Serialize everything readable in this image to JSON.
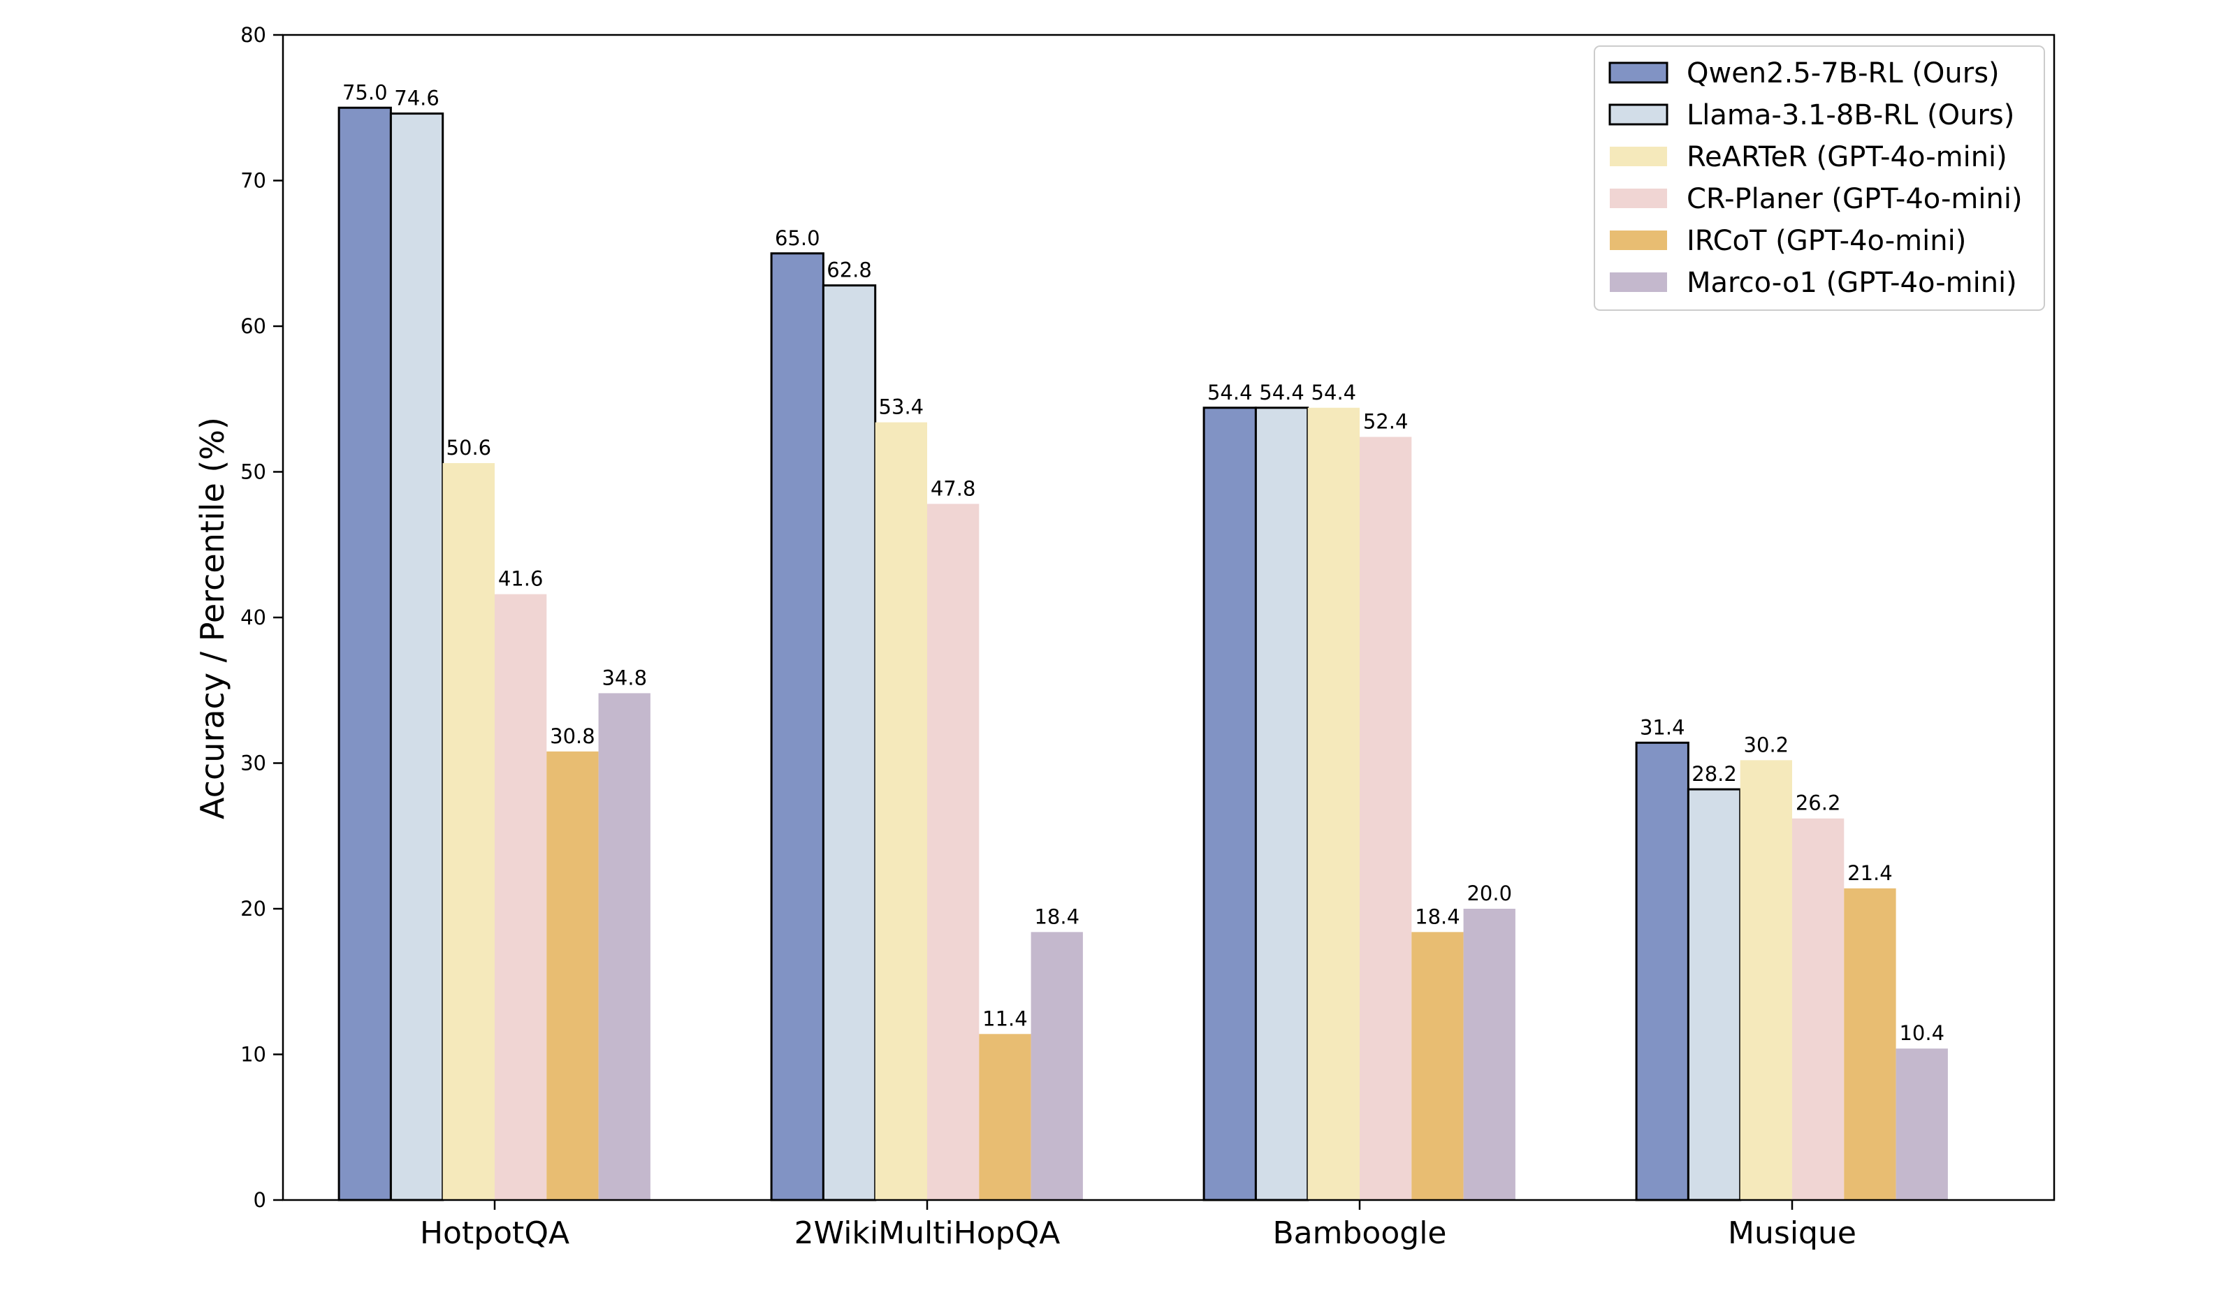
{
  "chart_data": {
    "type": "bar",
    "title": "",
    "xlabel": "",
    "ylabel": "Accuracy / Percentile (%)",
    "ylim": [
      0,
      80
    ],
    "yticks": [
      0,
      10,
      20,
      30,
      40,
      50,
      60,
      70,
      80
    ],
    "grid": false,
    "legend_position": "top-right",
    "categories": [
      "HotpotQA",
      "2WikiMultiHopQA",
      "Bamboogle",
      "Musique"
    ],
    "series": [
      {
        "name": "Qwen2.5-7B-RL (Ours)",
        "color": "#8193c4",
        "outlined": true,
        "values": [
          75.0,
          65.0,
          54.4,
          31.4
        ],
        "labels": [
          "75.0",
          "65.0",
          "54.4",
          "31.4"
        ]
      },
      {
        "name": "Llama-3.1-8B-RL (Ours)",
        "color": "#d2dde8",
        "outlined": true,
        "values": [
          74.6,
          62.8,
          54.4,
          28.2
        ],
        "labels": [
          "74.6",
          "62.8",
          "54.4",
          "28.2"
        ]
      },
      {
        "name": "ReARTeR (GPT-4o-mini)",
        "color": "#f5e9bb",
        "outlined": false,
        "values": [
          50.6,
          53.4,
          54.4,
          30.2
        ],
        "labels": [
          "50.6",
          "53.4",
          "54.4",
          "30.2"
        ]
      },
      {
        "name": "CR-Planer (GPT-4o-mini)",
        "color": "#f0d5d3",
        "outlined": false,
        "values": [
          41.6,
          47.8,
          52.4,
          26.2
        ],
        "labels": [
          "41.6",
          "47.8",
          "52.4",
          "26.2"
        ]
      },
      {
        "name": "IRCoT (GPT-4o-mini)",
        "color": "#e8bd72",
        "outlined": false,
        "values": [
          30.8,
          11.4,
          18.4,
          21.4
        ],
        "labels": [
          "30.8",
          "11.4",
          "18.4",
          "21.4"
        ]
      },
      {
        "name": "Marco-o1 (GPT-4o-mini)",
        "color": "#c4b8cd",
        "outlined": false,
        "values": [
          34.8,
          18.4,
          20.0,
          10.4
        ],
        "labels": [
          "34.8",
          "18.4",
          "20.0",
          "10.4"
        ]
      }
    ]
  }
}
